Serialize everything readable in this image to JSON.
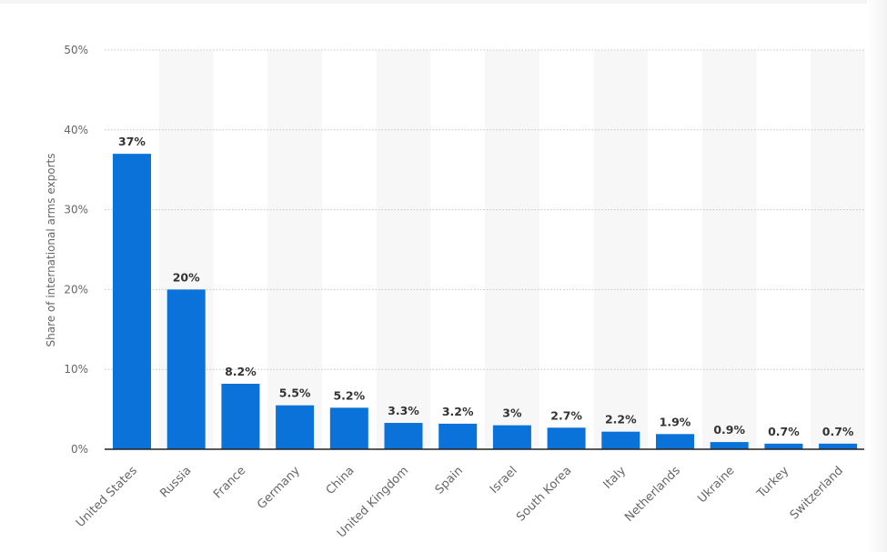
{
  "chart_data": {
    "type": "bar",
    "ylabel": "Share of international arms exports",
    "xlabel": "",
    "ylim": [
      0,
      50
    ],
    "yticks": [
      0,
      10,
      20,
      30,
      40,
      50
    ],
    "ytick_labels": [
      "0%",
      "10%",
      "20%",
      "30%",
      "40%",
      "50%"
    ],
    "grid": true,
    "categories": [
      "United States",
      "Russia",
      "France",
      "Germany",
      "China",
      "United Kingdom",
      "Spain",
      "Israel",
      "South Korea",
      "Italy",
      "Netherlands",
      "Ukraine",
      "Turkey",
      "Switzerland"
    ],
    "values": [
      37,
      20,
      8.2,
      5.5,
      5.2,
      3.3,
      3.2,
      3,
      2.7,
      2.2,
      1.9,
      0.9,
      0.7,
      0.7
    ],
    "data_labels": [
      "37%",
      "20%",
      "8.2%",
      "5.5%",
      "5.2%",
      "3.3%",
      "3.2%",
      "3%",
      "2.7%",
      "2.2%",
      "1.9%",
      "0.9%",
      "0.7%",
      "0.7%"
    ],
    "colors": {
      "bar": "#0a72d9",
      "grid": "#c4c4c4",
      "band": "#f7f7f7",
      "axis": "#222222",
      "tick_text": "#666666",
      "category_text": "#666666",
      "data_label_text": "#333333"
    }
  }
}
